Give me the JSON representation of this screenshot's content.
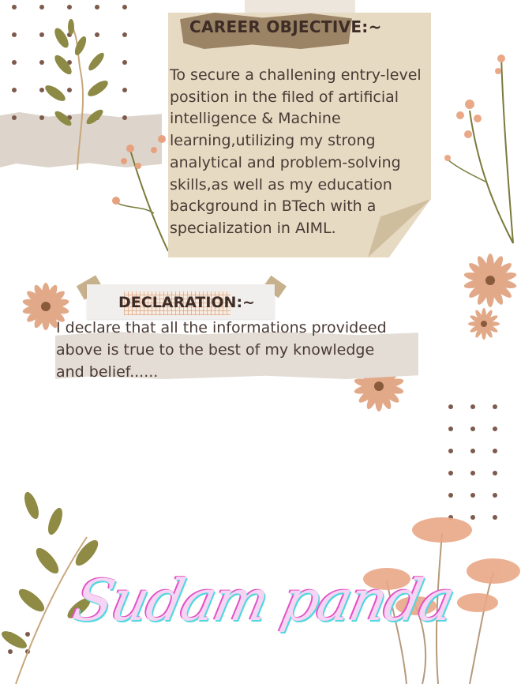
{
  "career_objective": {
    "title": "CAREER OBJECTIVE:~",
    "text": " To secure a challening entry-level\nposition in the filed of artificial\nintelligence & Machine\nlearning,utilizing my strong\nanalytical  and problem-solving\nskills,as well as my education\nbackground in BTech with a\nspecialization in AIML."
  },
  "declaration": {
    "title": "DECLARATION:~",
    "text": " I declare that all the informations provideed\nabove is true to the best of my knowledge\nand belief......"
  },
  "signature": "Sudam panda",
  "colors": {
    "text": "#4a3a34",
    "card": "#e7dac3",
    "dots": "#7d5a4c",
    "signature_fill": "#f6d4f4",
    "signature_cyan": "#53d8df",
    "signature_magenta": "#e152c4"
  }
}
